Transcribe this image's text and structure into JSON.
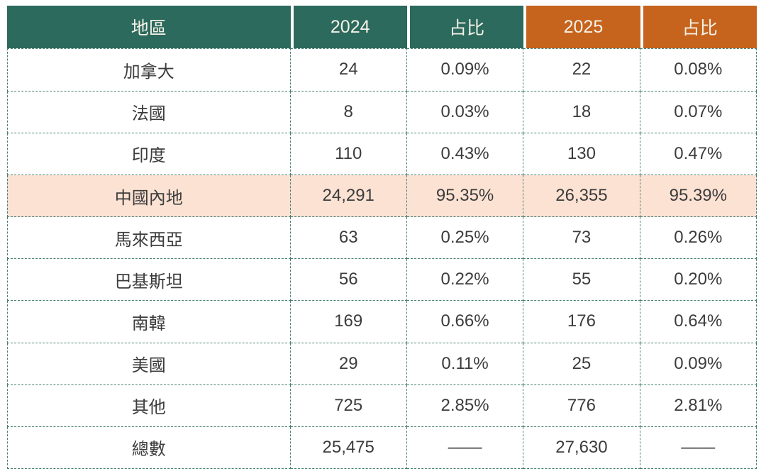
{
  "colors": {
    "header_teal": "#2B6A5D",
    "header_orange": "#C6641E",
    "row_highlight_peach": "#FCE2D3",
    "dashed_border_teal": "#4A8074",
    "body_text": "#3C3C3C",
    "header_text": "#F6F2E8"
  },
  "chart_data": {
    "type": "table",
    "title": "",
    "columns": [
      "地區",
      "2024",
      "占比",
      "2025",
      "占比"
    ],
    "column_themes": [
      "teal",
      "teal",
      "teal",
      "orange",
      "orange"
    ],
    "rows": [
      [
        "加拿大",
        "24",
        "0.09%",
        "22",
        "0.08%"
      ],
      [
        "法國",
        "8",
        "0.03%",
        "18",
        "0.07%"
      ],
      [
        "印度",
        "110",
        "0.43%",
        "130",
        "0.47%"
      ],
      [
        "中國內地",
        "24,291",
        "95.35%",
        "26,355",
        "95.39%"
      ],
      [
        "馬來西亞",
        "63",
        "0.25%",
        "73",
        "0.26%"
      ],
      [
        "巴基斯坦",
        "56",
        "0.22%",
        "55",
        "0.20%"
      ],
      [
        "南韓",
        "169",
        "0.66%",
        "176",
        "0.64%"
      ],
      [
        "美國",
        "29",
        "0.11%",
        "25",
        "0.09%"
      ],
      [
        "其他",
        "725",
        "2.85%",
        "776",
        "2.81%"
      ],
      [
        "總數",
        "25,475",
        "——",
        "27,630",
        "——"
      ]
    ],
    "highlighted_row_index": 3,
    "total_row_index": 9,
    "layout_hints": {
      "grid": "dashed",
      "header_fill": [
        "teal",
        "teal",
        "teal",
        "orange",
        "orange"
      ]
    }
  }
}
